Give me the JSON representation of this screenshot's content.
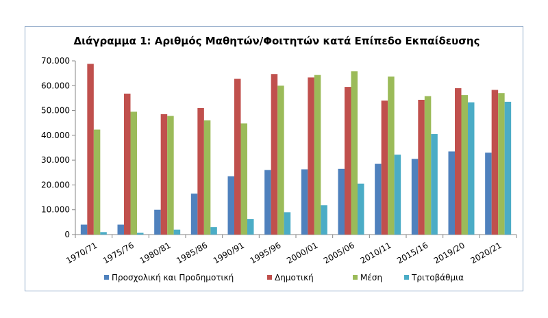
{
  "chart_data": {
    "type": "bar",
    "title": "Διάγραμμα 1: Αριθμός Μαθητών/Φοιτητών κατά Επίπεδο Εκπαίδευσης",
    "xlabel": "",
    "ylabel": "",
    "ylim": [
      0,
      70000
    ],
    "yticks": [
      0,
      10000,
      20000,
      30000,
      40000,
      50000,
      60000,
      70000
    ],
    "ytick_labels": [
      "0",
      "10.000",
      "20.000",
      "30.000",
      "40.000",
      "50.000",
      "60.000",
      "70.000"
    ],
    "grid": false,
    "legend_position": "bottom",
    "categories": [
      "1970/71",
      "1975/76",
      "1980/81",
      "1985/86",
      "1990/91",
      "1995/96",
      "2000/01",
      "2005/06",
      "2010/11",
      "2015/16",
      "2019/20",
      "2020/21"
    ],
    "series": [
      {
        "name": "Προσχολική και Προδημοτική",
        "color": "#4f81bd",
        "values": [
          4000,
          4000,
          10000,
          16500,
          23500,
          26000,
          26300,
          26500,
          28500,
          30500,
          33500,
          33000
        ]
      },
      {
        "name": "Δημοτική",
        "color": "#c0504d",
        "values": [
          68800,
          56800,
          48500,
          51000,
          62800,
          64700,
          63300,
          59500,
          54000,
          54300,
          59000,
          58300
        ]
      },
      {
        "name": "Μέση",
        "color": "#9bbb59",
        "values": [
          42300,
          49500,
          47800,
          46000,
          44800,
          60000,
          64300,
          65800,
          63700,
          55800,
          56200,
          57000
        ]
      },
      {
        "name": "Τριτοβάθμια",
        "color": "#4bacc6",
        "values": [
          1000,
          700,
          2000,
          3000,
          6300,
          9000,
          11800,
          20500,
          32200,
          40500,
          53300,
          53500
        ]
      }
    ]
  }
}
